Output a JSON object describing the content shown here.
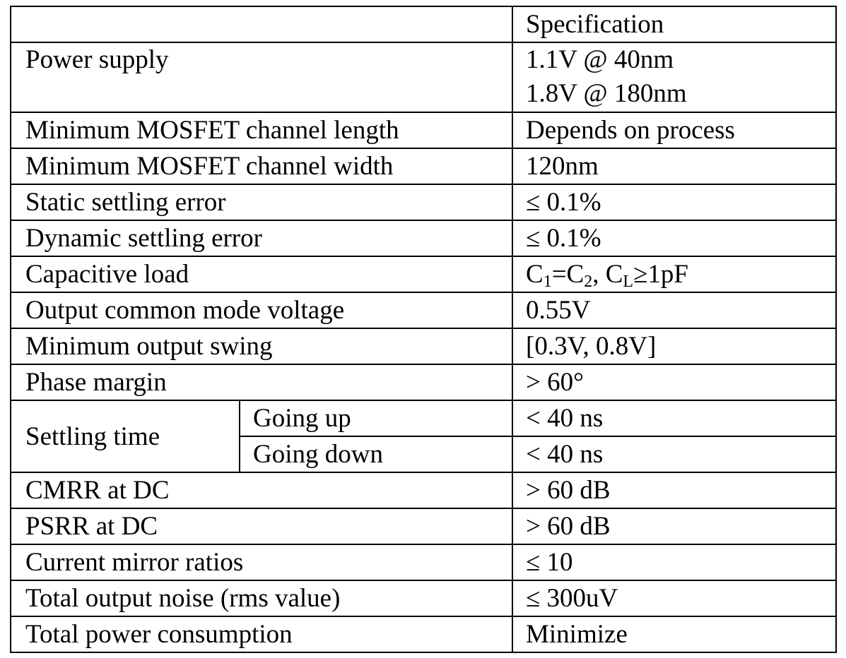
{
  "header": {
    "parameter": "",
    "specification": "Specification"
  },
  "rows": {
    "power_supply": {
      "parameter": "Power supply",
      "value_line1": "1.1V @ 40nm",
      "value_line2": "1.8V @ 180nm"
    },
    "min_channel_length": {
      "parameter": "Minimum MOSFET channel length",
      "value": "Depends on process"
    },
    "min_channel_width": {
      "parameter": "Minimum MOSFET channel width",
      "value": "120nm"
    },
    "static_settling_error": {
      "parameter": "Static settling error",
      "value": "≤ 0.1%"
    },
    "dynamic_settling_error": {
      "parameter": "Dynamic settling error",
      "value": "≤ 0.1%"
    },
    "capacitive_load": {
      "parameter": "Capacitive load",
      "value_c": "C",
      "value_sub1": "1",
      "value_eq": "=C",
      "value_sub2": "2",
      "value_comma": ", C",
      "value_subL": "L",
      "value_tail": "≥1pF"
    },
    "output_cm_voltage": {
      "parameter": "Output common mode voltage",
      "value": "0.55V"
    },
    "min_output_swing": {
      "parameter": "Minimum output swing",
      "value": "[0.3V, 0.8V]"
    },
    "phase_margin": {
      "parameter": "Phase margin",
      "value": "> 60°"
    },
    "settling_time": {
      "parameter": "Settling time",
      "going_up_label": "Going up",
      "going_up_value": "< 40 ns",
      "going_down_label": "Going down",
      "going_down_value": "< 40 ns"
    },
    "cmrr": {
      "parameter": "CMRR at DC",
      "value": "> 60 dB"
    },
    "psrr": {
      "parameter": "PSRR at DC",
      "value": "> 60 dB"
    },
    "current_mirror_ratios": {
      "parameter": "Current mirror ratios",
      "value": "≤ 10"
    },
    "total_output_noise": {
      "parameter": "Total output noise (rms value)",
      "value": "≤ 300uV"
    },
    "total_power": {
      "parameter": "Total power consumption",
      "value": "Minimize"
    }
  }
}
